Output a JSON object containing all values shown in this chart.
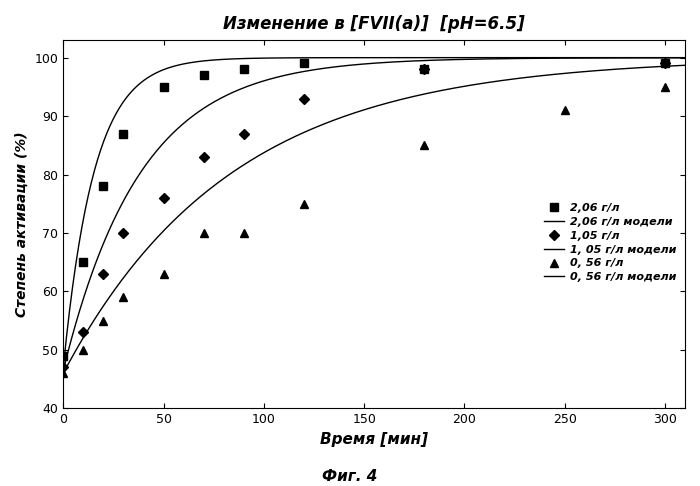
{
  "title": "Изменение в [FVII(а)]  [pH=6.5]",
  "xlabel": "Время [мин]",
  "ylabel": "Степень активации (%)",
  "caption": "Фиг. 4",
  "xlim": [
    0,
    310
  ],
  "ylim": [
    40,
    103
  ],
  "yticks": [
    40,
    50,
    60,
    70,
    80,
    90,
    100
  ],
  "xticks": [
    0,
    50,
    100,
    150,
    200,
    250,
    300
  ],
  "series1_x": [
    0,
    10,
    20,
    30,
    50,
    70,
    90,
    120,
    180,
    300
  ],
  "series1_y": [
    49,
    65,
    78,
    87,
    95,
    97,
    98,
    99,
    98,
    99
  ],
  "series1_label": "2,06 г/л",
  "series1_marker": "s",
  "series2_x": [
    0,
    10,
    20,
    30,
    50,
    70,
    90,
    120,
    180,
    300
  ],
  "series2_y": [
    47,
    53,
    63,
    70,
    76,
    83,
    87,
    93,
    98,
    99
  ],
  "series2_label": "1,05 г/л",
  "series2_marker": "D",
  "series3_x": [
    0,
    10,
    20,
    30,
    50,
    70,
    90,
    120,
    180,
    250,
    300
  ],
  "series3_y": [
    46,
    50,
    55,
    59,
    63,
    70,
    70,
    75,
    85,
    91,
    95
  ],
  "series3_label": "0, 56 г/л",
  "series3_marker": "^",
  "model1_label": "2,06 г/л модели",
  "model2_label": "1, 05 г/л модели",
  "model3_label": "0, 56 г/л модели",
  "model1_y0": 47.0,
  "model1_k": 0.065,
  "model2_y0": 46.5,
  "model2_k": 0.026,
  "model3_y0": 46.0,
  "model3_k": 0.012,
  "line_color": "#000000",
  "background_color": "#ffffff"
}
